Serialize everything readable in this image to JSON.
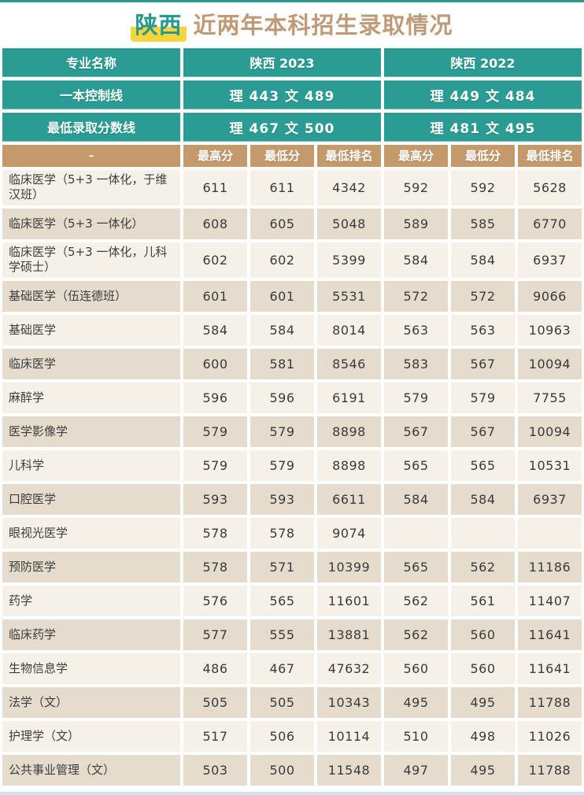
{
  "title": {
    "highlight": "陕西",
    "rest": "近两年本科招生录取情况"
  },
  "chart_data": {
    "type": "table",
    "title": "陕西 近两年本科招生录取情况",
    "header": {
      "major_label": "专业名称",
      "col_2023": "陕西 2023",
      "col_2022": "陕西 2022"
    },
    "control_line": {
      "label": "一本控制线",
      "v2023": "理 443 文 489",
      "v2022": "理 449 文 484"
    },
    "min_score_line": {
      "label": "最低录取分数线",
      "v2023": "理 467 文 500",
      "v2022": "理 481 文 495"
    },
    "subheader": {
      "major_label": "-",
      "columns": [
        "最高分",
        "最低分",
        "最低排名",
        "最高分",
        "最低分",
        "最低排名"
      ]
    },
    "rows": [
      {
        "major": "临床医学（5+3 一体化，于维汉班）",
        "values": [
          "611",
          "611",
          "4342",
          "592",
          "592",
          "5628"
        ]
      },
      {
        "major": "临床医学（5+3 一体化）",
        "values": [
          "608",
          "605",
          "5048",
          "589",
          "585",
          "6770"
        ]
      },
      {
        "major": "临床医学（5+3 一体化，儿科学硕士）",
        "values": [
          "602",
          "602",
          "5399",
          "584",
          "584",
          "6937"
        ]
      },
      {
        "major": "基础医学（伍连德班）",
        "values": [
          "601",
          "601",
          "5531",
          "572",
          "572",
          "9066"
        ]
      },
      {
        "major": "基础医学",
        "values": [
          "584",
          "584",
          "8014",
          "563",
          "563",
          "10963"
        ]
      },
      {
        "major": "临床医学",
        "values": [
          "600",
          "581",
          "8546",
          "583",
          "567",
          "10094"
        ]
      },
      {
        "major": "麻醉学",
        "values": [
          "596",
          "596",
          "6191",
          "579",
          "579",
          "7755"
        ]
      },
      {
        "major": "医学影像学",
        "values": [
          "579",
          "579",
          "8898",
          "567",
          "567",
          "10094"
        ]
      },
      {
        "major": "儿科学",
        "values": [
          "579",
          "579",
          "8898",
          "565",
          "565",
          "10531"
        ]
      },
      {
        "major": "口腔医学",
        "values": [
          "593",
          "593",
          "6611",
          "584",
          "584",
          "6937"
        ]
      },
      {
        "major": "眼视光医学",
        "values": [
          "578",
          "578",
          "9074",
          "",
          "",
          ""
        ]
      },
      {
        "major": "预防医学",
        "values": [
          "578",
          "571",
          "10399",
          "565",
          "562",
          "11186"
        ]
      },
      {
        "major": "药学",
        "values": [
          "576",
          "565",
          "11601",
          "562",
          "561",
          "11407"
        ]
      },
      {
        "major": "临床药学",
        "values": [
          "577",
          "555",
          "13881",
          "562",
          "560",
          "11641"
        ]
      },
      {
        "major": "生物信息学",
        "values": [
          "486",
          "467",
          "47632",
          "560",
          "560",
          "11641"
        ]
      },
      {
        "major": "法学（文）",
        "values": [
          "505",
          "505",
          "10343",
          "495",
          "495",
          "11788"
        ]
      },
      {
        "major": "护理学（文）",
        "values": [
          "517",
          "506",
          "10114",
          "510",
          "498",
          "11026"
        ]
      },
      {
        "major": "公共事业管理（文）",
        "values": [
          "503",
          "500",
          "11548",
          "497",
          "495",
          "11788"
        ]
      }
    ]
  },
  "colors": {
    "teal": "#2a9c93",
    "tan": "#c49a6c",
    "title_brown": "#bf9a77",
    "highlight_yellow": "#f6d43e",
    "row_light": "#f6f1e8",
    "row_dark": "#e5dccd"
  }
}
